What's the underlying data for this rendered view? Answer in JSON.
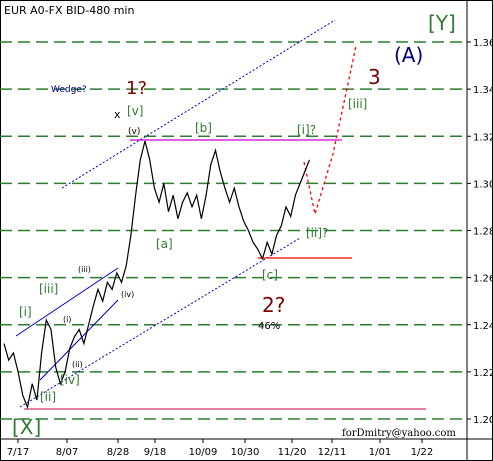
{
  "chart_data": {
    "type": "line",
    "title": "EUR A0-FX BID-480 min",
    "credit": "forDmitry@yahoo.com",
    "xlabel": "",
    "ylabel": "",
    "x_ticks": [
      "7/17",
      "8/07",
      "8/28",
      "9/18",
      "10/09",
      "10/30",
      "11/20",
      "12/11",
      "1/01",
      "1/22"
    ],
    "y_ticks": [
      "1.36",
      "1.34",
      "1.32",
      "1.30",
      "1.28",
      "1.26",
      "1.24",
      "1.22",
      "1.20"
    ],
    "ylim": [
      1.195,
      1.372
    ],
    "grid": "horizontal dashed",
    "colors": {
      "price": "#000000",
      "grid": "#2e7d2e",
      "channel": "#0000cc",
      "magenta_line": "#cc00cc",
      "projection": "#ff0000",
      "support_line": "#cc0044",
      "wave_green": "#2e7d2e",
      "wave_maroon": "#800000",
      "wave_navy": "#000080",
      "wave_red": "#cc0000"
    },
    "series": [
      {
        "values": [
          [
            0,
            1.232
          ],
          [
            2,
            1.225
          ],
          [
            4,
            1.228
          ],
          [
            6,
            1.22
          ],
          [
            8,
            1.21
          ],
          [
            10,
            1.205
          ],
          [
            12,
            1.215
          ],
          [
            14,
            1.208
          ],
          [
            16,
            1.228
          ],
          [
            18,
            1.242
          ],
          [
            20,
            1.238
          ],
          [
            22,
            1.222
          ],
          [
            24,
            1.215
          ],
          [
            26,
            1.22
          ],
          [
            28,
            1.23
          ],
          [
            30,
            1.235
          ],
          [
            32,
            1.238
          ],
          [
            34,
            1.232
          ],
          [
            36,
            1.24
          ],
          [
            38,
            1.248
          ],
          [
            40,
            1.255
          ],
          [
            42,
            1.25
          ],
          [
            44,
            1.258
          ],
          [
            46,
            1.255
          ],
          [
            48,
            1.262
          ],
          [
            50,
            1.258
          ],
          [
            52,
            1.265
          ],
          [
            54,
            1.278
          ],
          [
            56,
            1.295
          ],
          [
            58,
            1.31
          ],
          [
            60,
            1.318
          ],
          [
            62,
            1.31
          ],
          [
            64,
            1.298
          ],
          [
            66,
            1.292
          ],
          [
            68,
            1.3
          ],
          [
            70,
            1.288
          ],
          [
            72,
            1.295
          ],
          [
            74,
            1.285
          ],
          [
            76,
            1.292
          ],
          [
            78,
            1.296
          ],
          [
            80,
            1.29
          ],
          [
            82,
            1.295
          ],
          [
            84,
            1.285
          ],
          [
            86,
            1.295
          ],
          [
            88,
            1.308
          ],
          [
            90,
            1.314
          ],
          [
            92,
            1.305
          ],
          [
            94,
            1.298
          ],
          [
            96,
            1.292
          ],
          [
            98,
            1.298
          ],
          [
            100,
            1.29
          ],
          [
            102,
            1.284
          ],
          [
            104,
            1.28
          ],
          [
            106,
            1.275
          ],
          [
            108,
            1.272
          ],
          [
            110,
            1.268
          ],
          [
            112,
            1.275
          ],
          [
            114,
            1.27
          ],
          [
            116,
            1.278
          ],
          [
            118,
            1.282
          ],
          [
            120,
            1.29
          ],
          [
            122,
            1.286
          ],
          [
            124,
            1.295
          ],
          [
            126,
            1.3
          ],
          [
            128,
            1.305
          ],
          [
            130,
            1.31
          ]
        ]
      }
    ],
    "wave_labels": [
      {
        "text": "[Y]",
        "color": "wave_green"
      },
      {
        "text": "(A)",
        "color": "wave_navy"
      },
      {
        "text": "3",
        "color": "wave_maroon"
      },
      {
        "text": "[iii]",
        "color": "wave_green"
      },
      {
        "text": "1?",
        "color": "wave_maroon"
      },
      {
        "text": "x",
        "color": "price"
      },
      {
        "text": "[v]",
        "color": "wave_green"
      },
      {
        "text": "(v)",
        "color": "price"
      },
      {
        "text": "[b]",
        "color": "wave_green"
      },
      {
        "text": "[i]?",
        "color": "wave_green"
      },
      {
        "text": "[a]",
        "color": "wave_green"
      },
      {
        "text": "[ii]?",
        "color": "wave_green"
      },
      {
        "text": "[c]",
        "color": "wave_green"
      },
      {
        "text": "2?",
        "color": "wave_maroon"
      },
      {
        "text": "46%",
        "color": "price"
      },
      {
        "text": "Wedge?",
        "color": "wave_navy"
      },
      {
        "text": "(iii)",
        "color": "price"
      },
      {
        "text": "(iv)",
        "color": "price"
      },
      {
        "text": "[iii]",
        "color": "wave_green"
      },
      {
        "text": "[i]",
        "color": "wave_green"
      },
      {
        "text": "(i)",
        "color": "price"
      },
      {
        "text": "(ii)",
        "color": "price"
      },
      {
        "text": "[iv]",
        "color": "wave_green"
      },
      {
        "text": "[ii]",
        "color": "wave_green"
      },
      {
        "text": "[X]",
        "color": "wave_green"
      }
    ]
  }
}
